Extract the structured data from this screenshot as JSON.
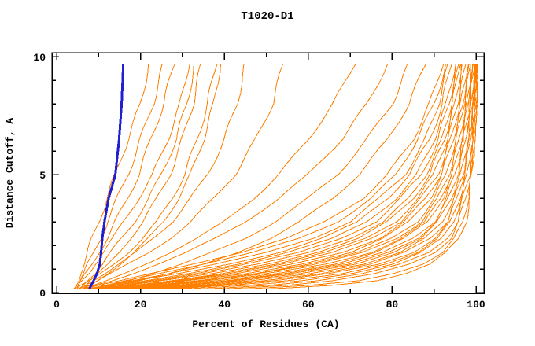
{
  "chart_data": {
    "type": "line",
    "title": "T1020-D1",
    "xlabel": "Percent of Residues (CA)",
    "ylabel": "Distance Cutoff, A",
    "xlim": [
      0,
      100
    ],
    "ylim": [
      0,
      10
    ],
    "x_ticks_major": [
      0,
      20,
      40,
      60,
      80,
      100
    ],
    "x_ticks_minor": [
      10,
      30,
      50,
      70,
      90
    ],
    "y_ticks_major": [
      0,
      5,
      10
    ],
    "y_ticks_minor": [
      1,
      2,
      3,
      4,
      6,
      7,
      8,
      9
    ],
    "grid": false,
    "legend": "none",
    "colors": {
      "orange": "#ff8000",
      "blue": "#2020d0",
      "axis": "#000000"
    },
    "cutoffs": [
      0.15,
      0.3,
      0.5,
      0.8,
      1.2,
      1.7,
      2.3,
      3,
      4,
      5,
      6.5,
      8,
      9.7
    ],
    "series": [
      {
        "color": "orange",
        "values": [
          4,
          4.5,
          5,
          5.5,
          6.5,
          7.5,
          8.5,
          10,
          12,
          14,
          17,
          20,
          22
        ]
      },
      {
        "color": "orange",
        "values": [
          4,
          5,
          5.5,
          6.5,
          7.5,
          9,
          10.5,
          12,
          14.5,
          17,
          20,
          23,
          25.5
        ]
      },
      {
        "color": "orange",
        "values": [
          5,
          5.5,
          6,
          7,
          8.5,
          10,
          12,
          14,
          17,
          19.5,
          22.5,
          25.5,
          28
        ]
      },
      {
        "color": "orange",
        "values": [
          4.5,
          5,
          6,
          7.5,
          9,
          11,
          13.5,
          16,
          19.5,
          23,
          26.5,
          29.5,
          31.5
        ]
      },
      {
        "color": "orange",
        "values": [
          5,
          6,
          7,
          9,
          11,
          13,
          15.5,
          18.5,
          22,
          25,
          28.5,
          31,
          33
        ]
      },
      {
        "color": "orange",
        "values": [
          6,
          7,
          8,
          10,
          12.5,
          15,
          17.5,
          20.5,
          24,
          27,
          30,
          32.5,
          34.5
        ]
      },
      {
        "color": "orange",
        "values": [
          5,
          6,
          8,
          10.5,
          13.5,
          17,
          20.5,
          24,
          27.5,
          30.5,
          33.5,
          36,
          38
        ]
      },
      {
        "color": "orange",
        "values": [
          6,
          7.5,
          9.5,
          12,
          15,
          18.5,
          22,
          25.5,
          29,
          32,
          35,
          37.5,
          39
        ]
      },
      {
        "color": "orange",
        "values": [
          5,
          6.5,
          8.5,
          11.5,
          15,
          19,
          23,
          27.5,
          32,
          36,
          40,
          43,
          45
        ]
      },
      {
        "color": "orange",
        "values": [
          6,
          8,
          10,
          13,
          17,
          22,
          27,
          32,
          37.5,
          42.5,
          47.5,
          51.5,
          54
        ]
      },
      {
        "color": "orange",
        "values": [
          7,
          9,
          12,
          16,
          21,
          27,
          33.5,
          40,
          47,
          53,
          60,
          66,
          71
        ]
      },
      {
        "color": "orange",
        "values": [
          6,
          9,
          13,
          18,
          24,
          31,
          38,
          45,
          53,
          60,
          68,
          74,
          79
        ]
      },
      {
        "color": "orange",
        "values": [
          8,
          12,
          17,
          23,
          30,
          37,
          45,
          52,
          60,
          67,
          74,
          80,
          84
        ]
      },
      {
        "color": "orange",
        "values": [
          9,
          14,
          20,
          27,
          35,
          43,
          51,
          58,
          66,
          72,
          79,
          84,
          88
        ]
      },
      {
        "color": "orange",
        "values": [
          7,
          10,
          15,
          22,
          32,
          44,
          55,
          64,
          73,
          79,
          85,
          89,
          92
        ]
      },
      {
        "color": "orange",
        "values": [
          7,
          11,
          16,
          24,
          35,
          47,
          58,
          67,
          75,
          81,
          86,
          90,
          93
        ]
      },
      {
        "color": "orange",
        "values": [
          8,
          12,
          18,
          27,
          38,
          50,
          61,
          70,
          77,
          83,
          88,
          91,
          93.5
        ]
      },
      {
        "color": "orange",
        "values": [
          8,
          13,
          19,
          29,
          41,
          53,
          63,
          72,
          79,
          84,
          89,
          92,
          94
        ]
      },
      {
        "color": "orange",
        "values": [
          9,
          14,
          21,
          31,
          43,
          55,
          66,
          74,
          81,
          86,
          90,
          93,
          95
        ]
      },
      {
        "color": "orange",
        "values": [
          9,
          15,
          22,
          33,
          45,
          58,
          68,
          76,
          82,
          87,
          91,
          93.5,
          95.5
        ]
      },
      {
        "color": "orange",
        "values": [
          10,
          16,
          24,
          35,
          48,
          60,
          70,
          78,
          84,
          88,
          92,
          94,
          96
        ]
      },
      {
        "color": "orange",
        "values": [
          10,
          17,
          25,
          37,
          50,
          62,
          72,
          79,
          85,
          89,
          92.5,
          94.5,
          96
        ]
      },
      {
        "color": "orange",
        "values": [
          11,
          18,
          27,
          39,
          52,
          64,
          74,
          81,
          86,
          90,
          93,
          95,
          96.5
        ]
      },
      {
        "color": "orange",
        "values": [
          11,
          19,
          28,
          41,
          54,
          66,
          75,
          82,
          87,
          91,
          93.5,
          95.5,
          97
        ]
      },
      {
        "color": "orange",
        "values": [
          12,
          20,
          30,
          43,
          56,
          68,
          77,
          83,
          88,
          91.5,
          94,
          96,
          97.5
        ]
      },
      {
        "color": "orange",
        "values": [
          12,
          21,
          31,
          45,
          58,
          70,
          78,
          84,
          89,
          92,
          94.5,
          96.5,
          98
        ]
      },
      {
        "color": "orange",
        "values": [
          13,
          22,
          33,
          47,
          60,
          72,
          80,
          86,
          90,
          93,
          95,
          97,
          98
        ]
      },
      {
        "color": "orange",
        "values": [
          14,
          23,
          34,
          48,
          62,
          73,
          81,
          87,
          91,
          93.5,
          95.5,
          97,
          98.5
        ]
      },
      {
        "color": "orange",
        "values": [
          15,
          25,
          36,
          50,
          64,
          75,
          82,
          88,
          91.5,
          94,
          96,
          97.5,
          98.5
        ]
      },
      {
        "color": "orange",
        "values": [
          15,
          26,
          38,
          52,
          66,
          76,
          83,
          88.5,
          92,
          94.5,
          96.5,
          98,
          99
        ]
      },
      {
        "color": "orange",
        "values": [
          16,
          28,
          40,
          54,
          68,
          78,
          85,
          90,
          93,
          95,
          97,
          98,
          99
        ]
      },
      {
        "color": "orange",
        "values": [
          17,
          29,
          42,
          56,
          70,
          79,
          86,
          90.5,
          93.5,
          95.5,
          97,
          98.5,
          99.5
        ]
      },
      {
        "color": "orange",
        "values": [
          18,
          31,
          44,
          58,
          71,
          80,
          87,
          91,
          94,
          96,
          97.5,
          98.5,
          99.5
        ]
      },
      {
        "color": "orange",
        "values": [
          20,
          33,
          46,
          60,
          73,
          82,
          88,
          92,
          94.5,
          96.5,
          98,
          99,
          99.5
        ]
      },
      {
        "color": "orange",
        "values": [
          22,
          35,
          49,
          63,
          75,
          83,
          89,
          93,
          95,
          97,
          98,
          99,
          100
        ]
      },
      {
        "color": "orange",
        "values": [
          24,
          38,
          52,
          65,
          77,
          85,
          90,
          93.5,
          95.5,
          97,
          98.5,
          99.5,
          100
        ]
      },
      {
        "color": "orange",
        "values": [
          27,
          41,
          55,
          68,
          78,
          86,
          91,
          94,
          96,
          97.5,
          98.5,
          99.5,
          100
        ]
      },
      {
        "color": "orange",
        "values": [
          30,
          45,
          58,
          70,
          80,
          87,
          92,
          94.5,
          96.5,
          98,
          99,
          99.5,
          100
        ]
      },
      {
        "color": "orange",
        "values": [
          35,
          50,
          62,
          73,
          82,
          89,
          93,
          95.5,
          97,
          98.5,
          99.5,
          100,
          100
        ]
      },
      {
        "color": "orange",
        "values": [
          40,
          55,
          66,
          76,
          84,
          90,
          94,
          96,
          97.5,
          98.5,
          99.5,
          100,
          100
        ]
      },
      {
        "color": "orange",
        "values": [
          45,
          60,
          72,
          80,
          87,
          92,
          95,
          97,
          98,
          99,
          99.5,
          100,
          100
        ]
      },
      {
        "color": "orange",
        "values": [
          50,
          65,
          76,
          83,
          89,
          93,
          96,
          97.5,
          98.5,
          99,
          99.5,
          100,
          100
        ]
      },
      {
        "color": "blue",
        "width": 3,
        "values": [
          7.8,
          8.2,
          8.8,
          9.6,
          10.3,
          10.6,
          10.9,
          11.4,
          12.4,
          14,
          14.9,
          15.5,
          15.9
        ]
      }
    ]
  }
}
